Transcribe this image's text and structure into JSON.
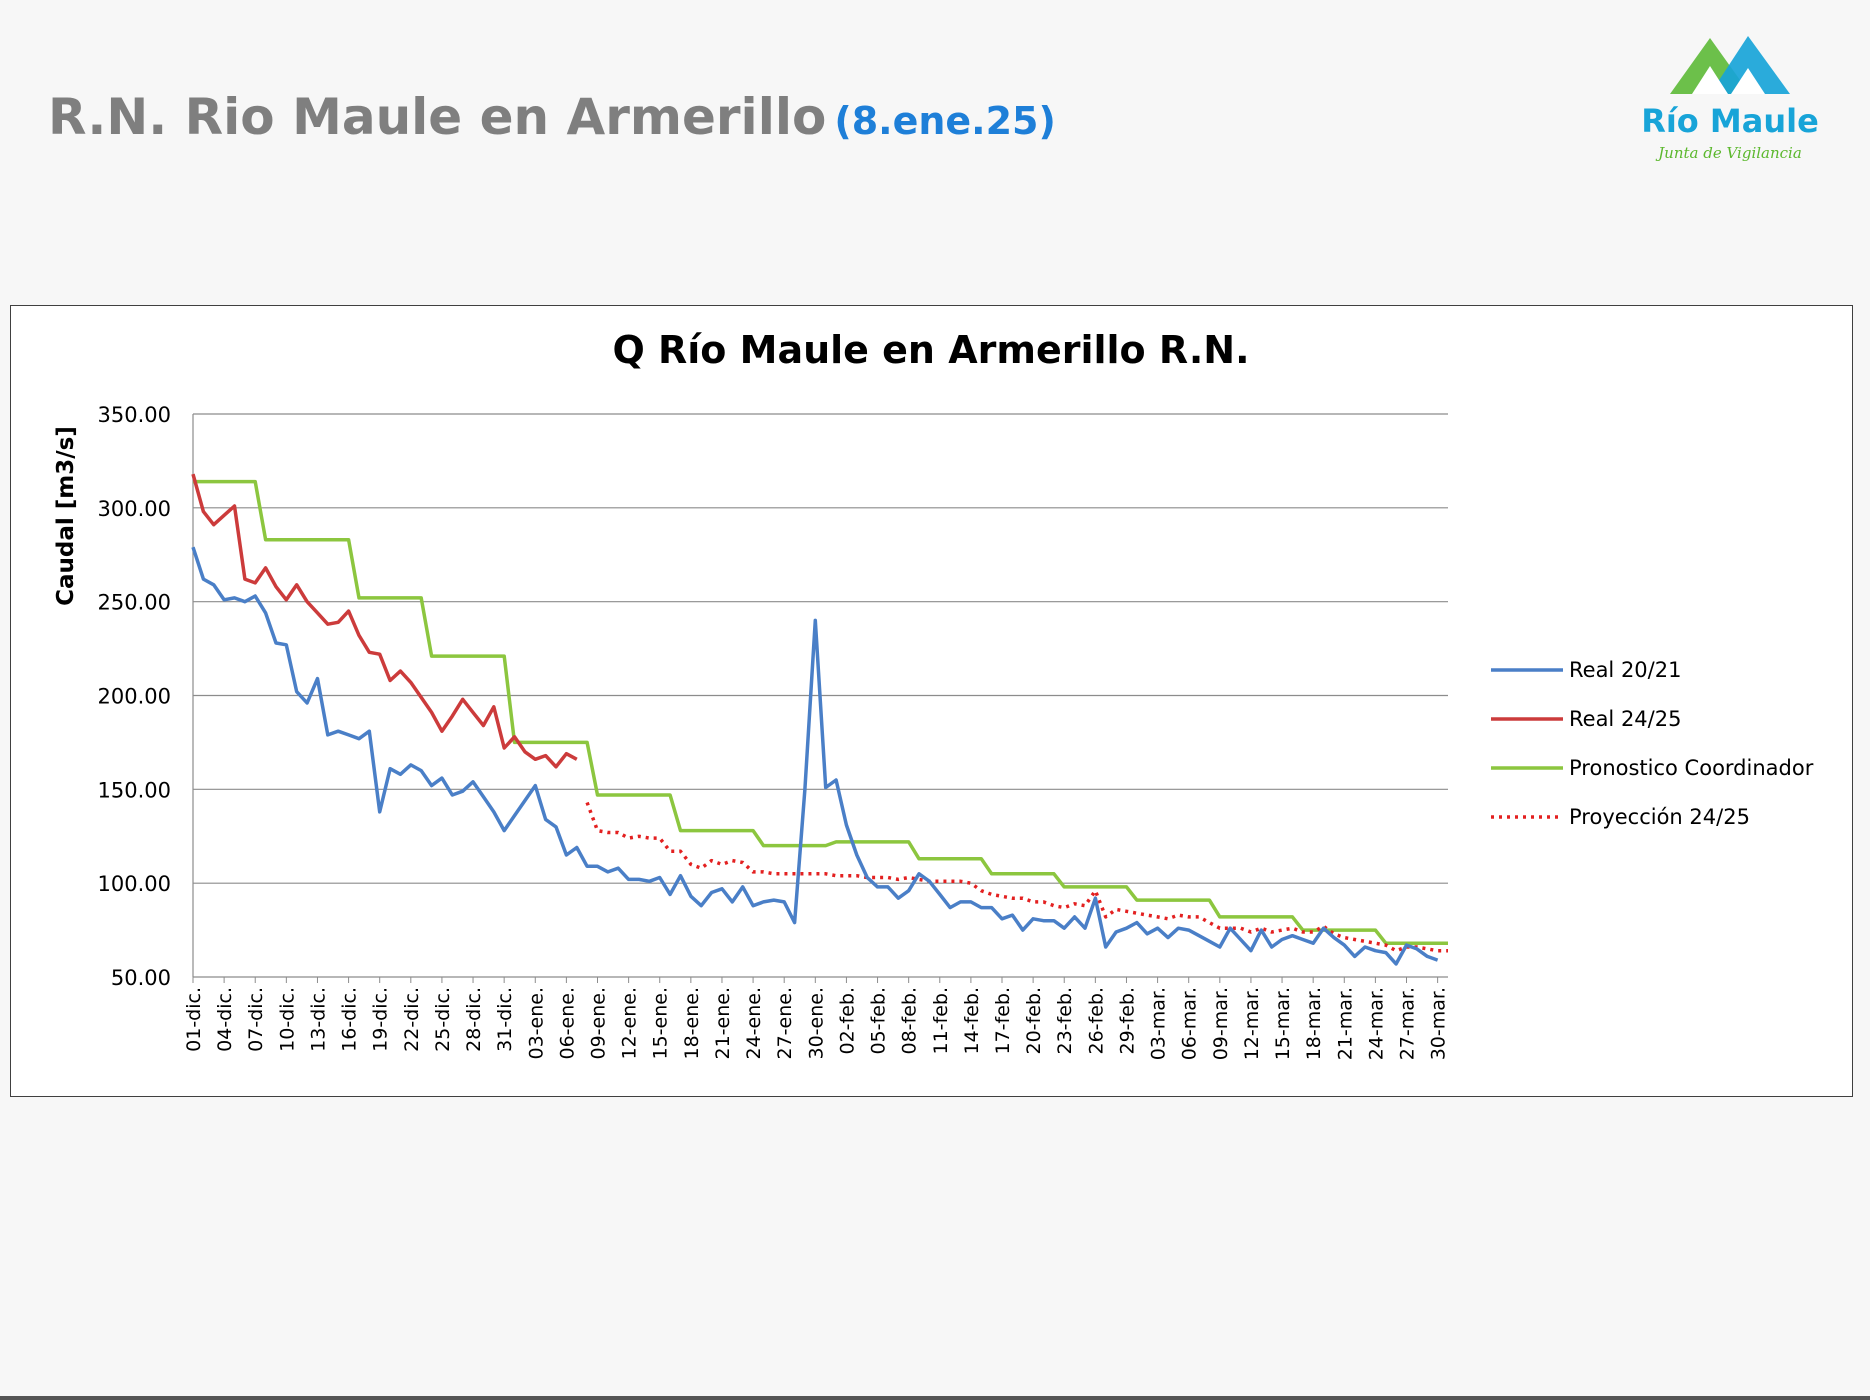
{
  "slide": {
    "title": "R.N. Rio Maule en Armerillo",
    "date": "(8.ene.25)"
  },
  "logo": {
    "name": "Río Maule",
    "tagline": "Junta de Vigilancia"
  },
  "colors": {
    "real_2021": "#4a7fc7",
    "real_2425": "#cc3b3b",
    "pronostico": "#8cc63f",
    "proyeccion": "#e32020"
  },
  "chart_data": {
    "type": "line",
    "title": "Q Río Maule en Armerillo R.N.",
    "xlabel": "",
    "ylabel": "Caudal [m3/s]",
    "ylim": [
      50,
      350
    ],
    "yticks": [
      "50.00",
      "100.00",
      "150.00",
      "200.00",
      "250.00",
      "300.00",
      "350.00"
    ],
    "grid": true,
    "legend_position": "right",
    "x_ticks": [
      "01-dic.",
      "04-dic.",
      "07-dic.",
      "10-dic.",
      "13-dic.",
      "16-dic.",
      "19-dic.",
      "22-dic.",
      "25-dic.",
      "28-dic.",
      "31-dic.",
      "03-ene.",
      "06-ene.",
      "09-ene.",
      "12-ene.",
      "15-ene.",
      "18-ene.",
      "21-ene.",
      "24-ene.",
      "27-ene.",
      "30-ene.",
      "02-feb.",
      "05-feb.",
      "08-feb.",
      "11-feb.",
      "14-feb.",
      "17-feb.",
      "20-feb.",
      "23-feb.",
      "26-feb.",
      "29-feb.",
      "03-mar.",
      "06-mar.",
      "09-mar.",
      "12-mar.",
      "15-mar.",
      "18-mar.",
      "21-mar.",
      "24-mar.",
      "27-mar.",
      "30-mar."
    ],
    "series": [
      {
        "name": "Real 20/21",
        "color": "#4a7fc7",
        "style": "solid",
        "points": [
          [
            "01-dic.",
            279
          ],
          [
            "02-dic.",
            262
          ],
          [
            "03-dic.",
            259
          ],
          [
            "04-dic.",
            251
          ],
          [
            "05-dic.",
            252
          ],
          [
            "06-dic.",
            250
          ],
          [
            "07-dic.",
            253
          ],
          [
            "08-dic.",
            244
          ],
          [
            "09-dic.",
            228
          ],
          [
            "10-dic.",
            227
          ],
          [
            "11-dic.",
            202
          ],
          [
            "12-dic.",
            196
          ],
          [
            "13-dic.",
            209
          ],
          [
            "14-dic.",
            179
          ],
          [
            "15-dic.",
            181
          ],
          [
            "16-dic.",
            179
          ],
          [
            "17-dic.",
            177
          ],
          [
            "18-dic.",
            181
          ],
          [
            "19-dic.",
            138
          ],
          [
            "20-dic.",
            161
          ],
          [
            "21-dic.",
            158
          ],
          [
            "22-dic.",
            163
          ],
          [
            "23-dic.",
            160
          ],
          [
            "24-dic.",
            152
          ],
          [
            "25-dic.",
            156
          ],
          [
            "26-dic.",
            147
          ],
          [
            "27-dic.",
            149
          ],
          [
            "28-dic.",
            154
          ],
          [
            "29-dic.",
            146
          ],
          [
            "30-dic.",
            138
          ],
          [
            "31-dic.",
            128
          ],
          [
            "01-ene.",
            136
          ],
          [
            "02-ene.",
            144
          ],
          [
            "03-ene.",
            152
          ],
          [
            "04-ene.",
            134
          ],
          [
            "05-ene.",
            130
          ],
          [
            "06-ene.",
            115
          ],
          [
            "07-ene.",
            119
          ],
          [
            "08-ene.",
            109
          ],
          [
            "09-ene.",
            109
          ],
          [
            "10-ene.",
            106
          ],
          [
            "11-ene.",
            108
          ],
          [
            "12-ene.",
            102
          ],
          [
            "13-ene.",
            102
          ],
          [
            "14-ene.",
            101
          ],
          [
            "15-ene.",
            103
          ],
          [
            "16-ene.",
            94
          ],
          [
            "17-ene.",
            104
          ],
          [
            "18-ene.",
            93
          ],
          [
            "19-ene.",
            88
          ],
          [
            "20-ene.",
            95
          ],
          [
            "21-ene.",
            97
          ],
          [
            "22-ene.",
            90
          ],
          [
            "23-ene.",
            98
          ],
          [
            "24-ene.",
            88
          ],
          [
            "25-ene.",
            90
          ],
          [
            "26-ene.",
            91
          ],
          [
            "27-ene.",
            90
          ],
          [
            "28-ene.",
            79
          ],
          [
            "29-ene.",
            150
          ],
          [
            "30-ene.",
            240
          ],
          [
            "31-ene.",
            151
          ],
          [
            "01-feb.",
            155
          ],
          [
            "02-feb.",
            131
          ],
          [
            "03-feb.",
            115
          ],
          [
            "04-feb.",
            103
          ],
          [
            "05-feb.",
            98
          ],
          [
            "06-feb.",
            98
          ],
          [
            "07-feb.",
            92
          ],
          [
            "08-feb.",
            96
          ],
          [
            "09-feb.",
            105
          ],
          [
            "10-feb.",
            101
          ],
          [
            "11-feb.",
            94
          ],
          [
            "12-feb.",
            87
          ],
          [
            "13-feb.",
            90
          ],
          [
            "14-feb.",
            90
          ],
          [
            "15-feb.",
            87
          ],
          [
            "16-feb.",
            87
          ],
          [
            "17-feb.",
            81
          ],
          [
            "18-feb.",
            83
          ],
          [
            "19-feb.",
            75
          ],
          [
            "20-feb.",
            81
          ],
          [
            "21-feb.",
            80
          ],
          [
            "22-feb.",
            80
          ],
          [
            "23-feb.",
            76
          ],
          [
            "24-feb.",
            82
          ],
          [
            "25-feb.",
            76
          ],
          [
            "26-feb.",
            92
          ],
          [
            "27-feb.",
            66
          ],
          [
            "28-feb.",
            74
          ],
          [
            "29-feb.",
            76
          ],
          [
            "01-mar.",
            79
          ],
          [
            "02-mar.",
            73
          ],
          [
            "03-mar.",
            76
          ],
          [
            "04-mar.",
            71
          ],
          [
            "05-mar.",
            76
          ],
          [
            "06-mar.",
            75
          ],
          [
            "07-mar.",
            72
          ],
          [
            "08-mar.",
            69
          ],
          [
            "09-mar.",
            66
          ],
          [
            "10-mar.",
            76
          ],
          [
            "11-mar.",
            70
          ],
          [
            "12-mar.",
            64
          ],
          [
            "13-mar.",
            75
          ],
          [
            "14-mar.",
            66
          ],
          [
            "15-mar.",
            70
          ],
          [
            "16-mar.",
            72
          ],
          [
            "17-mar.",
            70
          ],
          [
            "18-mar.",
            68
          ],
          [
            "19-mar.",
            76
          ],
          [
            "20-mar.",
            71
          ],
          [
            "21-mar.",
            67
          ],
          [
            "22-mar.",
            61
          ],
          [
            "23-mar.",
            66
          ],
          [
            "24-mar.",
            64
          ],
          [
            "25-mar.",
            63
          ],
          [
            "26-mar.",
            57
          ],
          [
            "27-mar.",
            67
          ],
          [
            "28-mar.",
            65
          ],
          [
            "29-mar.",
            61
          ],
          [
            "30-mar.",
            59
          ]
        ]
      },
      {
        "name": "Real 24/25",
        "color": "#cc3b3b",
        "style": "solid",
        "points": [
          [
            "01-dic.",
            318
          ],
          [
            "02-dic.",
            298
          ],
          [
            "03-dic.",
            291
          ],
          [
            "04-dic.",
            296
          ],
          [
            "05-dic.",
            301
          ],
          [
            "06-dic.",
            262
          ],
          [
            "07-dic.",
            260
          ],
          [
            "08-dic.",
            268
          ],
          [
            "09-dic.",
            258
          ],
          [
            "10-dic.",
            251
          ],
          [
            "11-dic.",
            259
          ],
          [
            "12-dic.",
            250
          ],
          [
            "13-dic.",
            244
          ],
          [
            "14-dic.",
            238
          ],
          [
            "15-dic.",
            239
          ],
          [
            "16-dic.",
            245
          ],
          [
            "17-dic.",
            232
          ],
          [
            "18-dic.",
            223
          ],
          [
            "19-dic.",
            222
          ],
          [
            "20-dic.",
            208
          ],
          [
            "21-dic.",
            213
          ],
          [
            "22-dic.",
            207
          ],
          [
            "23-dic.",
            199
          ],
          [
            "24-dic.",
            191
          ],
          [
            "25-dic.",
            181
          ],
          [
            "26-dic.",
            189
          ],
          [
            "27-dic.",
            198
          ],
          [
            "28-dic.",
            191
          ],
          [
            "29-dic.",
            184
          ],
          [
            "30-dic.",
            194
          ],
          [
            "31-dic.",
            172
          ],
          [
            "01-ene.",
            178
          ],
          [
            "02-ene.",
            170
          ],
          [
            "03-ene.",
            166
          ],
          [
            "04-ene.",
            168
          ],
          [
            "05-ene.",
            162
          ],
          [
            "06-ene.",
            169
          ],
          [
            "07-ene.",
            166
          ]
        ]
      },
      {
        "name": "Pronostico Coordinador",
        "color": "#8cc63f",
        "style": "step",
        "points": [
          [
            "01-dic.",
            314
          ],
          [
            "07-dic.",
            314
          ],
          [
            "08-dic.",
            283
          ],
          [
            "16-dic.",
            283
          ],
          [
            "17-dic.",
            252
          ],
          [
            "23-dic.",
            252
          ],
          [
            "24-dic.",
            221
          ],
          [
            "31-dic.",
            221
          ],
          [
            "01-ene.",
            175
          ],
          [
            "08-ene.",
            175
          ],
          [
            "09-ene.",
            147
          ],
          [
            "16-ene.",
            147
          ],
          [
            "17-ene.",
            128
          ],
          [
            "24-ene.",
            128
          ],
          [
            "25-ene.",
            120
          ],
          [
            "31-ene.",
            120
          ],
          [
            "01-feb.",
            122
          ],
          [
            "08-feb.",
            122
          ],
          [
            "09-feb.",
            113
          ],
          [
            "15-feb.",
            113
          ],
          [
            "16-feb.",
            105
          ],
          [
            "22-feb.",
            105
          ],
          [
            "23-feb.",
            98
          ],
          [
            "29-feb.",
            98
          ],
          [
            "01-mar.",
            91
          ],
          [
            "08-mar.",
            91
          ],
          [
            "09-mar.",
            82
          ],
          [
            "16-mar.",
            82
          ],
          [
            "17-mar.",
            75
          ],
          [
            "24-mar.",
            75
          ],
          [
            "25-mar.",
            68
          ],
          [
            "31-mar.",
            68
          ]
        ]
      },
      {
        "name": "Proyección 24/25",
        "color": "#e32020",
        "style": "dotted",
        "points": [
          [
            "08-ene.",
            143
          ],
          [
            "09-ene.",
            128
          ],
          [
            "10-ene.",
            127
          ],
          [
            "11-ene.",
            127
          ],
          [
            "12-ene.",
            124
          ],
          [
            "13-ene.",
            125
          ],
          [
            "14-ene.",
            124
          ],
          [
            "15-ene.",
            124
          ],
          [
            "16-ene.",
            117
          ],
          [
            "17-ene.",
            117
          ],
          [
            "18-ene.",
            110
          ],
          [
            "19-ene.",
            108
          ],
          [
            "20-ene.",
            112
          ],
          [
            "21-ene.",
            110
          ],
          [
            "22-ene.",
            112
          ],
          [
            "23-ene.",
            111
          ],
          [
            "24-ene.",
            106
          ],
          [
            "25-ene.",
            106
          ],
          [
            "26-ene.",
            105
          ],
          [
            "27-ene.",
            105
          ],
          [
            "28-ene.",
            105
          ],
          [
            "29-ene.",
            105
          ],
          [
            "30-ene.",
            105
          ],
          [
            "31-ene.",
            105
          ],
          [
            "01-feb.",
            104
          ],
          [
            "02-feb.",
            104
          ],
          [
            "03-feb.",
            104
          ],
          [
            "04-feb.",
            103
          ],
          [
            "05-feb.",
            103
          ],
          [
            "06-feb.",
            103
          ],
          [
            "07-feb.",
            102
          ],
          [
            "08-feb.",
            103
          ],
          [
            "09-feb.",
            102
          ],
          [
            "10-feb.",
            101
          ],
          [
            "11-feb.",
            101
          ],
          [
            "12-feb.",
            101
          ],
          [
            "13-feb.",
            101
          ],
          [
            "14-feb.",
            100
          ],
          [
            "15-feb.",
            96
          ],
          [
            "16-feb.",
            94
          ],
          [
            "17-feb.",
            93
          ],
          [
            "18-feb.",
            92
          ],
          [
            "19-feb.",
            92
          ],
          [
            "20-feb.",
            90
          ],
          [
            "21-feb.",
            90
          ],
          [
            "22-feb.",
            88
          ],
          [
            "23-feb.",
            87
          ],
          [
            "24-feb.",
            89
          ],
          [
            "25-feb.",
            88
          ],
          [
            "26-feb.",
            96
          ],
          [
            "27-feb.",
            82
          ],
          [
            "28-feb.",
            86
          ],
          [
            "29-feb.",
            85
          ],
          [
            "01-mar.",
            84
          ],
          [
            "02-mar.",
            83
          ],
          [
            "03-mar.",
            82
          ],
          [
            "04-mar.",
            81
          ],
          [
            "05-mar.",
            83
          ],
          [
            "06-mar.",
            82
          ],
          [
            "07-mar.",
            82
          ],
          [
            "08-mar.",
            79
          ],
          [
            "09-mar.",
            76
          ],
          [
            "10-mar.",
            76
          ],
          [
            "11-mar.",
            76
          ],
          [
            "12-mar.",
            74
          ],
          [
            "13-mar.",
            76
          ],
          [
            "14-mar.",
            74
          ],
          [
            "15-mar.",
            75
          ],
          [
            "16-mar.",
            76
          ],
          [
            "17-mar.",
            74
          ],
          [
            "18-mar.",
            74
          ],
          [
            "19-mar.",
            77
          ],
          [
            "20-mar.",
            73
          ],
          [
            "21-mar.",
            71
          ],
          [
            "22-mar.",
            70
          ],
          [
            "23-mar.",
            69
          ],
          [
            "24-mar.",
            68
          ],
          [
            "25-mar.",
            67
          ],
          [
            "26-mar.",
            64
          ],
          [
            "27-mar.",
            66
          ],
          [
            "28-mar.",
            66
          ],
          [
            "29-mar.",
            65
          ],
          [
            "30-mar.",
            64
          ],
          [
            "31-mar.",
            64
          ]
        ]
      }
    ]
  }
}
